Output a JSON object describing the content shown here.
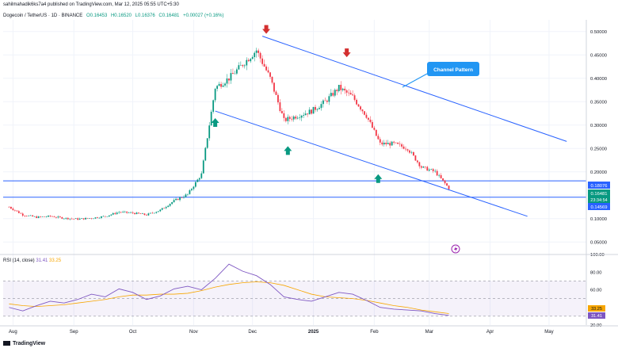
{
  "header": {
    "published_by": "sahilmahadik6ks7a4 published on TradingView.com, Mar 12, 2025 05:55 UTC+5:30",
    "symbol": "Dogecoin / TetherUS · 1D · BINANCE",
    "ohlc": {
      "o": "O0.16453",
      "h": "H0.16520",
      "l": "L0.16376",
      "c": "C0.16481",
      "change": "+0.00027 (+0.16%)"
    }
  },
  "rsi_header": {
    "label": "RSI (14, close)",
    "rsi_value": "31.41",
    "ma_value": "33.25"
  },
  "annotation": {
    "callout": "Channel Pattern"
  },
  "price_badges": {
    "upper_level": "0.18076",
    "current_price": "0.16481",
    "countdown": "23:34:54",
    "lower_level": "0.14569"
  },
  "rsi_badges": {
    "ma": "33.25",
    "rsi": "31.41"
  },
  "footer": {
    "brand": "TradingView"
  },
  "colors": {
    "up": "#089981",
    "down": "#f23645",
    "trendline": "#2962ff",
    "rsi_line": "#7e57c2",
    "rsi_ma": "#f7a600",
    "callout_bg": "#2196f3",
    "arrow_down": "#d32f2f",
    "arrow_up": "#089981"
  },
  "chart_data": [
    {
      "type": "candlestick",
      "title": "",
      "x_ticks": [
        "Aug",
        "Sep",
        "Oct",
        "Nov",
        "Dec",
        "2025",
        "Feb",
        "Mar",
        "Apr",
        "May"
      ],
      "y_ticks": [
        "0.50000",
        "0.45000",
        "0.40000",
        "0.35000",
        "0.30000",
        "0.25000",
        "0.20000",
        "0.15000",
        "0.10000",
        "0.05000"
      ],
      "ylim": [
        0.025,
        0.525
      ],
      "grid": true,
      "horizontal_levels": [
        0.18076,
        0.14569
      ],
      "trendlines": [
        {
          "name": "upper",
          "from": [
            "2024-12-06",
            0.49
          ],
          "to": [
            "2025-05-10",
            0.265
          ]
        },
        {
          "name": "lower",
          "from": [
            "2024-11-12",
            0.33
          ],
          "to": [
            "2025-04-20",
            0.105
          ]
        }
      ],
      "markers": [
        {
          "kind": "arrow-down",
          "date": "2024-12-08",
          "price": 0.49
        },
        {
          "kind": "arrow-down",
          "date": "2025-01-18",
          "price": 0.44
        },
        {
          "kind": "arrow-up",
          "date": "2024-11-12",
          "price": 0.32
        },
        {
          "kind": "arrow-up",
          "date": "2024-12-19",
          "price": 0.26
        },
        {
          "kind": "arrow-up",
          "date": "2025-02-03",
          "price": 0.2
        }
      ],
      "close_series_weekly": [
        {
          "x": "2024-07-30",
          "close": 0.125
        },
        {
          "x": "2024-08-06",
          "close": 0.108
        },
        {
          "x": "2024-08-13",
          "close": 0.103
        },
        {
          "x": "2024-08-20",
          "close": 0.105
        },
        {
          "x": "2024-08-27",
          "close": 0.101
        },
        {
          "x": "2024-09-03",
          "close": 0.099
        },
        {
          "x": "2024-09-10",
          "close": 0.101
        },
        {
          "x": "2024-09-17",
          "close": 0.105
        },
        {
          "x": "2024-09-24",
          "close": 0.114
        },
        {
          "x": "2024-10-01",
          "close": 0.112
        },
        {
          "x": "2024-10-08",
          "close": 0.108
        },
        {
          "x": "2024-10-15",
          "close": 0.118
        },
        {
          "x": "2024-10-22",
          "close": 0.138
        },
        {
          "x": "2024-10-29",
          "close": 0.152
        },
        {
          "x": "2024-11-05",
          "close": 0.195
        },
        {
          "x": "2024-11-12",
          "close": 0.38
        },
        {
          "x": "2024-11-19",
          "close": 0.4
        },
        {
          "x": "2024-11-26",
          "close": 0.43
        },
        {
          "x": "2024-12-03",
          "close": 0.46
        },
        {
          "x": "2024-12-10",
          "close": 0.4
        },
        {
          "x": "2024-12-17",
          "close": 0.31
        },
        {
          "x": "2024-12-24",
          "close": 0.32
        },
        {
          "x": "2024-12-31",
          "close": 0.33
        },
        {
          "x": "2025-01-07",
          "close": 0.35
        },
        {
          "x": "2025-01-14",
          "close": 0.38
        },
        {
          "x": "2025-01-21",
          "close": 0.36
        },
        {
          "x": "2025-01-28",
          "close": 0.32
        },
        {
          "x": "2025-02-04",
          "close": 0.26
        },
        {
          "x": "2025-02-11",
          "close": 0.26
        },
        {
          "x": "2025-02-18",
          "close": 0.25
        },
        {
          "x": "2025-02-25",
          "close": 0.21
        },
        {
          "x": "2025-03-04",
          "close": 0.2
        },
        {
          "x": "2025-03-11",
          "close": 0.165
        }
      ]
    },
    {
      "type": "line",
      "title": "RSI (14, close)",
      "x_ticks": [
        "Aug",
        "Sep",
        "Oct",
        "Nov",
        "Dec",
        "2025",
        "Feb",
        "Mar",
        "Apr",
        "May"
      ],
      "y_ticks": [
        "100.00",
        "80.00",
        "60.00",
        "40.00",
        "20.00"
      ],
      "ylim": [
        20,
        100
      ],
      "band": [
        30,
        70
      ],
      "series": [
        {
          "name": "RSI",
          "values": [
            40,
            36,
            42,
            47,
            45,
            49,
            55,
            52,
            61,
            57,
            49,
            53,
            61,
            64,
            60,
            73,
            89,
            81,
            76,
            66,
            52,
            49,
            47,
            52,
            57,
            55,
            48,
            40,
            38,
            37,
            36,
            33,
            31
          ]
        },
        {
          "name": "RSI MA",
          "values": [
            44,
            42,
            41,
            42,
            43,
            45,
            47,
            49,
            52,
            54,
            54,
            55,
            55,
            56,
            59,
            63,
            66,
            68,
            69,
            68,
            65,
            60,
            55,
            52,
            51,
            50,
            48,
            45,
            42,
            40,
            37,
            35,
            33
          ]
        }
      ]
    }
  ]
}
